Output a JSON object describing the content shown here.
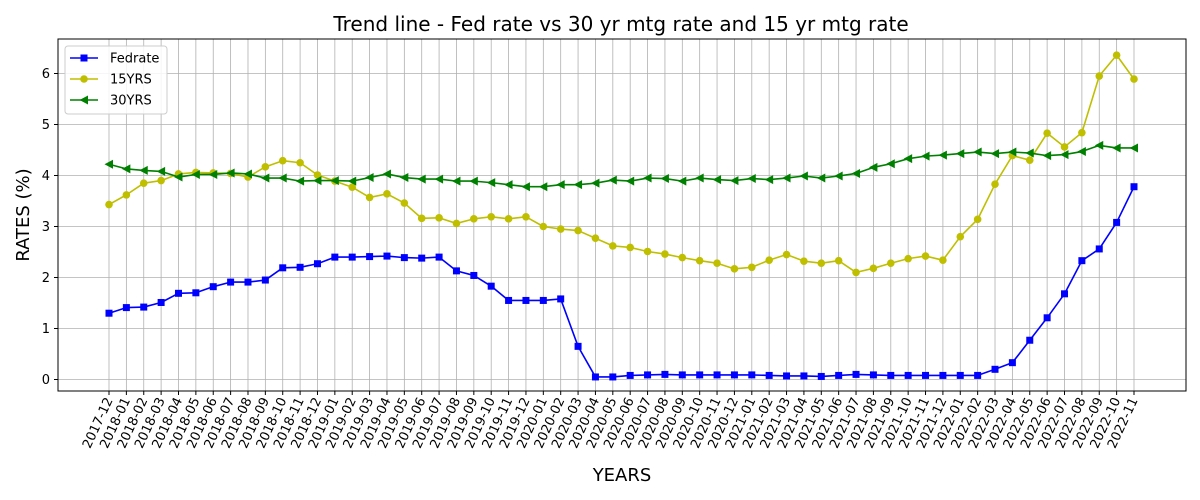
{
  "chart_data": {
    "type": "line",
    "title": "Trend line - Fed rate vs 30 yr mtg rate and 15 yr mtg rate",
    "xlabel": "YEARS",
    "ylabel": "RATES (%)",
    "ylim": [
      -0.25,
      6.7
    ],
    "yticks": [
      0,
      1,
      2,
      3,
      4,
      5,
      6
    ],
    "grid": true,
    "legend_position": "top-left",
    "categories": [
      "2017-12",
      "2018-01",
      "2018-02",
      "2018-03",
      "2018-04",
      "2018-05",
      "2018-06",
      "2018-07",
      "2018-08",
      "2018-09",
      "2018-10",
      "2018-11",
      "2018-12",
      "2019-01",
      "2019-02",
      "2019-03",
      "2019-04",
      "2019-05",
      "2019-06",
      "2019-07",
      "2019-08",
      "2019-09",
      "2019-10",
      "2019-11",
      "2019-12",
      "2020-01",
      "2020-02",
      "2020-03",
      "2020-04",
      "2020-05",
      "2020-06",
      "2020-07",
      "2020-08",
      "2020-09",
      "2020-10",
      "2020-11",
      "2020-12",
      "2021-01",
      "2021-02",
      "2021-03",
      "2021-04",
      "2021-05",
      "2021-06",
      "2021-07",
      "2021-08",
      "2021-09",
      "2021-10",
      "2021-11",
      "2021-12",
      "2022-01",
      "2022-02",
      "2022-03",
      "2022-04",
      "2022-05",
      "2022-06",
      "2022-07",
      "2022-08",
      "2022-09",
      "2022-10",
      "2022-11"
    ],
    "series": [
      {
        "name": "Fedrate",
        "color": "#0000ff",
        "marker": "square",
        "values": [
          1.3,
          1.41,
          1.42,
          1.51,
          1.69,
          1.7,
          1.82,
          1.91,
          1.91,
          1.95,
          2.19,
          2.2,
          2.27,
          2.4,
          2.4,
          2.41,
          2.42,
          2.39,
          2.38,
          2.4,
          2.13,
          2.04,
          1.83,
          1.55,
          1.55,
          1.55,
          1.58,
          0.65,
          0.05,
          0.05,
          0.08,
          0.09,
          0.1,
          0.09,
          0.09,
          0.09,
          0.09,
          0.09,
          0.08,
          0.07,
          0.07,
          0.06,
          0.08,
          0.1,
          0.09,
          0.08,
          0.08,
          0.08,
          0.08,
          0.08,
          0.08,
          0.2,
          0.33,
          0.77,
          1.21,
          1.68,
          2.33,
          2.56,
          3.08,
          3.78
        ]
      },
      {
        "name": "15YRS",
        "color": "#bfbf00",
        "marker": "circle",
        "values": [
          3.43,
          3.62,
          3.85,
          3.9,
          4.03,
          4.06,
          4.05,
          4.04,
          3.97,
          4.17,
          4.29,
          4.25,
          4.01,
          3.89,
          3.77,
          3.57,
          3.64,
          3.46,
          3.16,
          3.17,
          3.06,
          3.15,
          3.19,
          3.15,
          3.19,
          3.0,
          2.95,
          2.92,
          2.77,
          2.62,
          2.59,
          2.51,
          2.46,
          2.39,
          2.33,
          2.28,
          2.17,
          2.2,
          2.34,
          2.45,
          2.32,
          2.28,
          2.33,
          2.1,
          2.18,
          2.28,
          2.37,
          2.42,
          2.34,
          2.8,
          3.14,
          3.83,
          4.39,
          4.3,
          4.83,
          4.56,
          4.84,
          5.95,
          6.36,
          5.89
        ]
      },
      {
        "name": "30YRS",
        "color": "#008000",
        "marker": "triangle-left",
        "values": [
          4.22,
          4.13,
          4.1,
          4.08,
          3.97,
          4.02,
          4.02,
          4.05,
          4.03,
          3.95,
          3.95,
          3.89,
          3.9,
          3.9,
          3.89,
          3.96,
          4.03,
          3.96,
          3.93,
          3.93,
          3.89,
          3.89,
          3.86,
          3.82,
          3.78,
          3.78,
          3.82,
          3.82,
          3.85,
          3.91,
          3.89,
          3.95,
          3.94,
          3.89,
          3.95,
          3.92,
          3.9,
          3.94,
          3.92,
          3.95,
          3.99,
          3.95,
          3.99,
          4.04,
          4.16,
          4.23,
          4.33,
          4.38,
          4.4,
          4.43,
          4.46,
          4.43,
          4.46,
          4.44,
          4.39,
          4.41,
          4.47,
          4.59,
          4.54,
          4.54
        ]
      }
    ]
  }
}
